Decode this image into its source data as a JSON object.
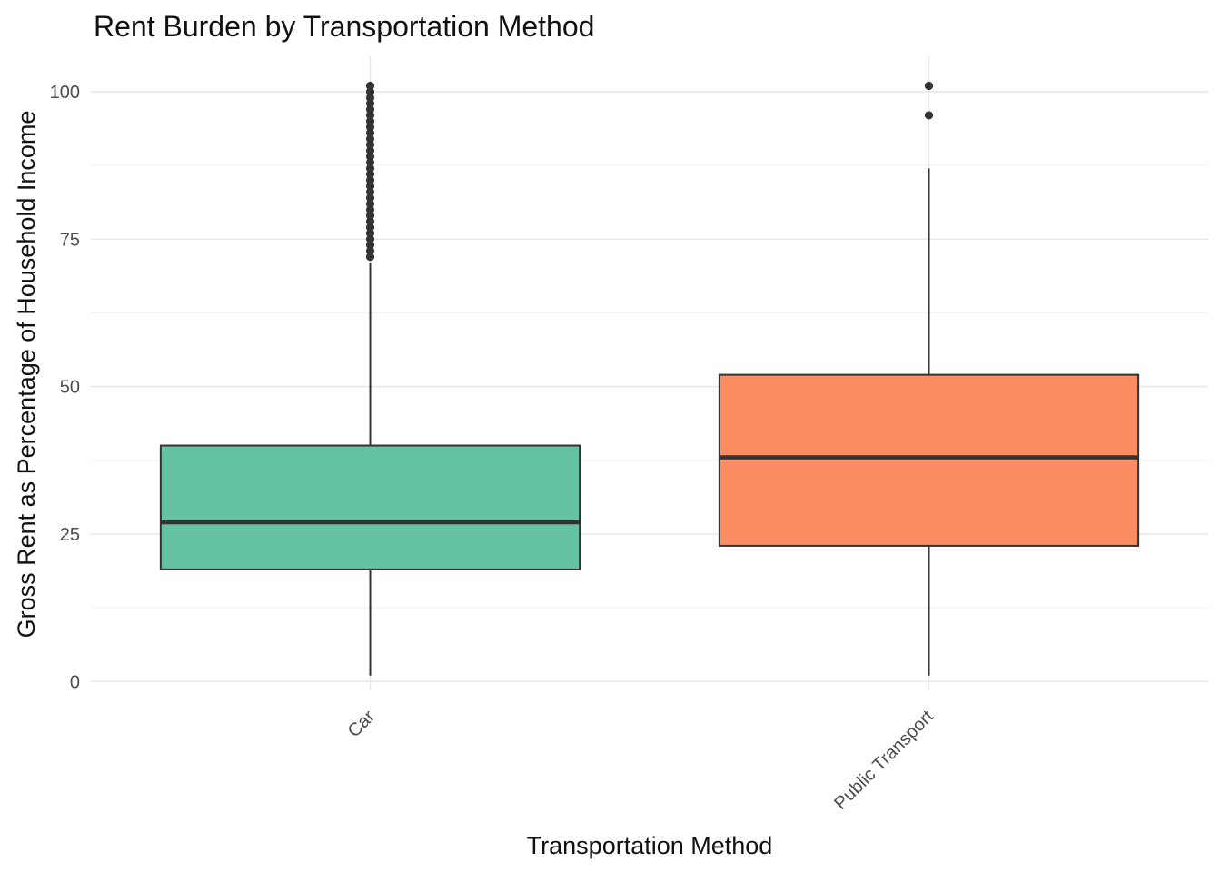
{
  "chart_data": {
    "type": "boxplot",
    "title": "Rent Burden by Transportation Method",
    "xlabel": "Transportation Method",
    "ylabel": "Gross Rent as Percentage of Household Income",
    "ylim": [
      -1.5,
      106
    ],
    "yticks": [
      0,
      25,
      50,
      75,
      100
    ],
    "grid": true,
    "legend": "none",
    "categories": [
      "Car",
      "Public Transport"
    ],
    "boxes": [
      {
        "category": "Car",
        "color": "#66C2A5",
        "whisker_low": 1,
        "q1": 19,
        "median": 27,
        "q3": 40,
        "whisker_high": 71,
        "outliers": [
          72,
          73,
          74,
          75,
          76,
          77,
          78,
          79,
          80,
          81,
          82,
          83,
          84,
          85,
          86,
          87,
          88,
          89,
          90,
          91,
          92,
          93,
          94,
          95,
          96,
          97,
          98,
          99,
          100,
          101
        ]
      },
      {
        "category": "Public Transport",
        "color": "#FC8D62",
        "whisker_low": 1,
        "q1": 23,
        "median": 38,
        "q3": 52,
        "whisker_high": 87,
        "outliers": [
          96,
          101
        ]
      }
    ]
  }
}
